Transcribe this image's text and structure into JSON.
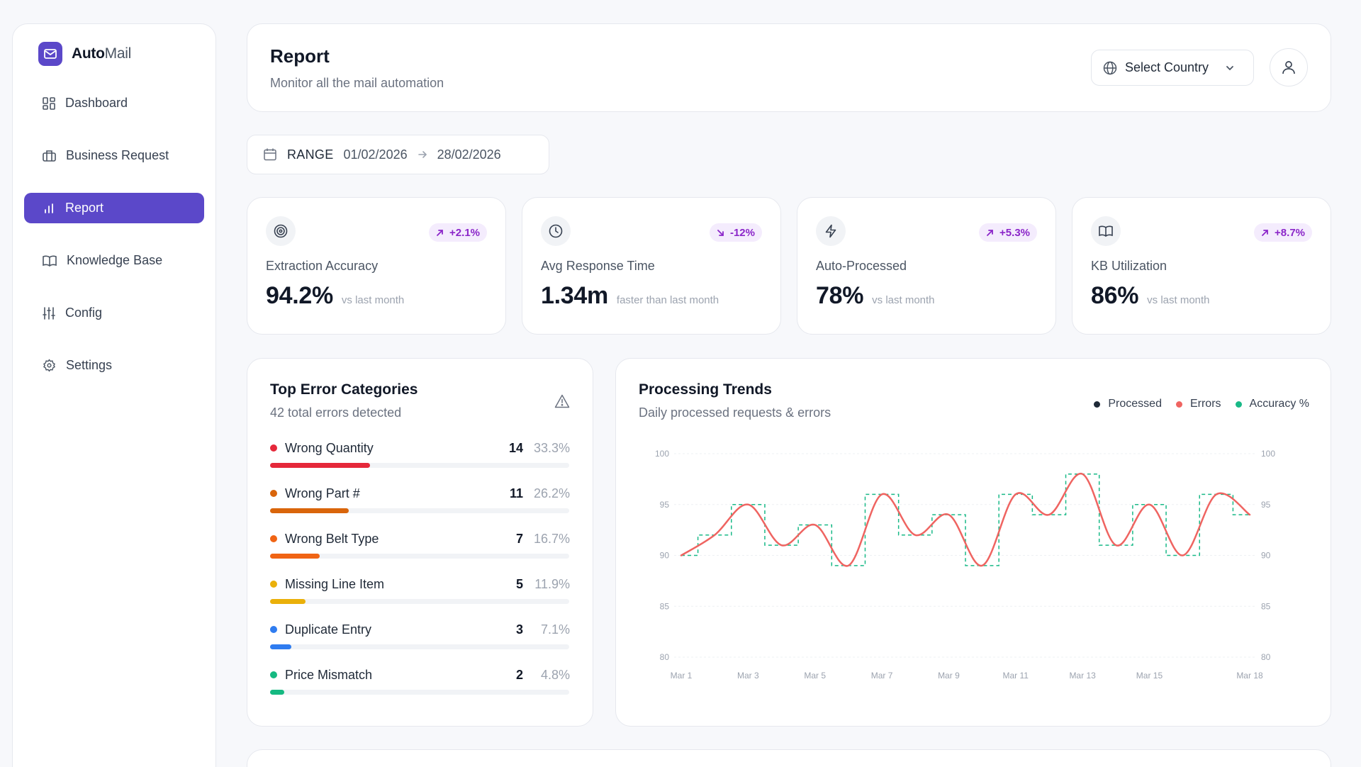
{
  "brand": {
    "name_bold": "Auto",
    "name_light": "Mail"
  },
  "sidebar": {
    "items": [
      {
        "label": "Dashboard",
        "icon": "dashboard-grid-icon",
        "active": false
      },
      {
        "label": "Business Request",
        "icon": "briefcase-icon",
        "active": false
      },
      {
        "label": "Report",
        "icon": "bar-chart-icon",
        "active": true
      },
      {
        "label": "Knowledge Base",
        "icon": "book-open-icon",
        "active": false
      },
      {
        "label": "Config",
        "icon": "sliders-icon",
        "active": false
      },
      {
        "label": "Settings",
        "icon": "gear-icon",
        "active": false
      }
    ]
  },
  "header": {
    "title": "Report",
    "subtitle": "Monitor all the mail automation",
    "country_select_label": "Select Country"
  },
  "range": {
    "label": "RANGE",
    "start": "01/02/2026",
    "end": "28/02/2026"
  },
  "kpis": [
    {
      "label": "Extraction Accuracy",
      "value": "94.2%",
      "note": "vs last month",
      "badge": "+2.1%",
      "trend": "up",
      "icon": "target-icon"
    },
    {
      "label": "Avg Response Time",
      "value": "1.34m",
      "note": "faster than last month",
      "badge": "-12%",
      "trend": "down",
      "icon": "clock-icon"
    },
    {
      "label": "Auto-Processed",
      "value": "78%",
      "note": "vs last month",
      "badge": "+5.3%",
      "trend": "up",
      "icon": "lightning-icon"
    },
    {
      "label": "KB Utilization",
      "value": "86%",
      "note": "vs last month",
      "badge": "+8.7%",
      "trend": "up",
      "icon": "book-open-icon"
    }
  ],
  "errors": {
    "title": "Top Error Categories",
    "subtitle": "42 total errors detected",
    "items": [
      {
        "name": "Wrong Quantity",
        "count": "14",
        "pct": "33.3%",
        "fraction": 0.333,
        "color": "#e5283a"
      },
      {
        "name": "Wrong Part #",
        "count": "11",
        "pct": "26.2%",
        "fraction": 0.262,
        "color": "#d9650b"
      },
      {
        "name": "Wrong Belt Type",
        "count": "7",
        "pct": "16.7%",
        "fraction": 0.167,
        "color": "#f06414"
      },
      {
        "name": "Missing Line Item",
        "count": "5",
        "pct": "11.9%",
        "fraction": 0.119,
        "color": "#eab00a"
      },
      {
        "name": "Duplicate Entry",
        "count": "3",
        "pct": "7.1%",
        "fraction": 0.071,
        "color": "#2f7cf0"
      },
      {
        "name": "Price Mismatch",
        "count": "2",
        "pct": "4.8%",
        "fraction": 0.048,
        "color": "#15b981"
      }
    ]
  },
  "trends": {
    "title": "Processing Trends",
    "subtitle": "Daily processed requests & errors",
    "legend": [
      {
        "name": "Processed",
        "color": "#1f2937"
      },
      {
        "name": "Errors",
        "color": "#ef6461"
      },
      {
        "name": "Accuracy %",
        "color": "#19b987"
      }
    ]
  },
  "chart_data": {
    "type": "line",
    "x": [
      "Mar 1",
      "Mar 2",
      "Mar 3",
      "Mar 4",
      "Mar 5",
      "Mar 6",
      "Mar 7",
      "Mar 8",
      "Mar 9",
      "Mar 10",
      "Mar 11",
      "Mar 12",
      "Mar 13",
      "Mar 14",
      "Mar 15",
      "Mar 16",
      "Mar 17",
      "Mar 18"
    ],
    "x_tick_labels": [
      "Mar 1",
      "Mar 3",
      "Mar 5",
      "Mar 7",
      "Mar 9",
      "Mar 11",
      "Mar 13",
      "Mar 15",
      "Mar 18"
    ],
    "series": [
      {
        "name": "Accuracy %",
        "style": "step-dashed",
        "color": "#19b987",
        "values": [
          90,
          92,
          95,
          91,
          93,
          89,
          96,
          92,
          94,
          89,
          96,
          94,
          98,
          91,
          95,
          90,
          96,
          94
        ]
      },
      {
        "name": "Errors",
        "style": "smooth",
        "color": "#ef6461",
        "values": [
          90,
          92,
          95,
          91,
          93,
          89,
          96,
          92,
          94,
          89,
          96,
          94,
          98,
          91,
          95,
          90,
          96,
          94
        ]
      }
    ],
    "ylim": [
      80,
      100
    ],
    "y_ticks": [
      100,
      95,
      90,
      85,
      80
    ],
    "grid": true
  }
}
